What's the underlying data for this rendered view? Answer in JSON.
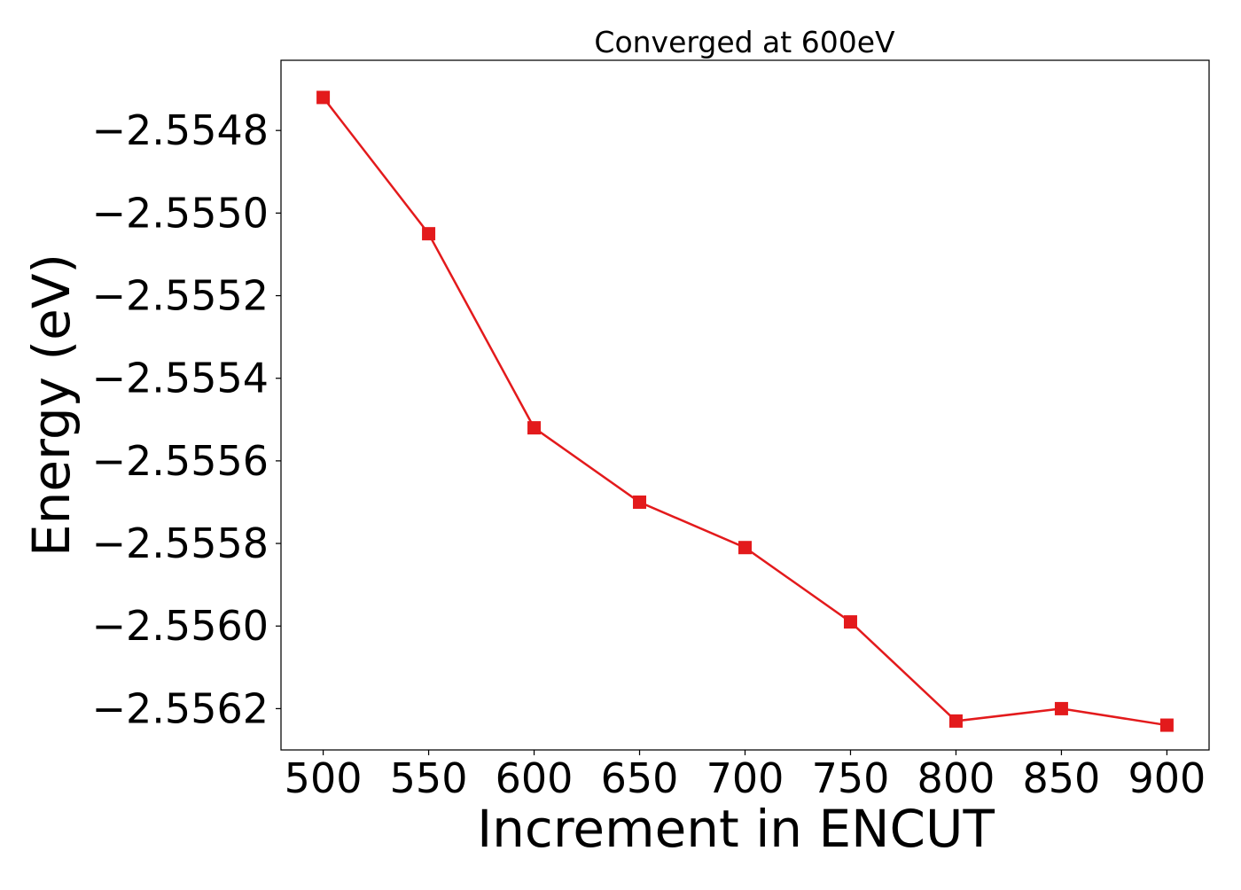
{
  "chart_data": {
    "type": "line",
    "title": "Converged at 600eV",
    "xlabel": "Increment in ENCUT",
    "ylabel": "Energy (eV)",
    "x": [
      500,
      550,
      600,
      650,
      700,
      750,
      800,
      850,
      900
    ],
    "x_ticks": [
      "500",
      "550",
      "600",
      "650",
      "700",
      "750",
      "800",
      "850",
      "900"
    ],
    "xlim": [
      480,
      920
    ],
    "y_ticks": [
      {
        "value": -2.5548,
        "label": "−2.5548"
      },
      {
        "value": -2.555,
        "label": "−2.5550"
      },
      {
        "value": -2.5552,
        "label": "−2.5552"
      },
      {
        "value": -2.5554,
        "label": "−2.5554"
      },
      {
        "value": -2.5556,
        "label": "−2.5556"
      },
      {
        "value": -2.5558,
        "label": "−2.5558"
      },
      {
        "value": -2.556,
        "label": "−2.5560"
      },
      {
        "value": -2.5562,
        "label": "−2.5562"
      }
    ],
    "ylim": [
      -2.5563,
      -2.55463
    ],
    "grid": false,
    "series": [
      {
        "values": [
          -2.55472,
          -2.55505,
          -2.55552,
          -2.5557,
          -2.55581,
          -2.55599,
          -2.55623,
          -2.5562,
          -2.55624
        ],
        "color": "#e31a1c",
        "marker": "square"
      }
    ]
  }
}
